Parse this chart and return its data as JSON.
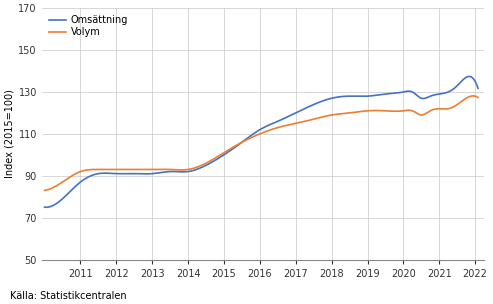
{
  "ylabel": "Index (2015=100)",
  "source": "Källa: Statistikcentralen",
  "legend_labels": [
    "Omsättning",
    "Volym"
  ],
  "line_colors": [
    "#4472c4",
    "#ed7d31"
  ],
  "line_width": 1.2,
  "ylim": [
    50,
    170
  ],
  "yticks": [
    50,
    70,
    90,
    110,
    130,
    150,
    170
  ],
  "xlim_start": 2009.92,
  "xlim_end": 2022.25,
  "xticks": [
    2011,
    2012,
    2013,
    2014,
    2015,
    2016,
    2017,
    2018,
    2019,
    2020,
    2021,
    2022
  ],
  "background_color": "#ffffff",
  "grid_color": "#c8c8c8",
  "omsattning_knots_x": [
    2010.0,
    2010.5,
    2011.0,
    2011.5,
    2012.0,
    2012.5,
    2013.0,
    2013.5,
    2014.0,
    2014.5,
    2015.0,
    2015.5,
    2016.0,
    2016.5,
    2017.0,
    2017.5,
    2018.0,
    2018.5,
    2019.0,
    2019.5,
    2020.0,
    2020.25,
    2020.5,
    2020.75,
    2021.0,
    2021.25,
    2021.5,
    2021.75,
    2022.0
  ],
  "omsattning_knots_y": [
    75,
    79,
    87,
    91,
    91,
    91,
    91,
    92,
    92,
    95,
    100,
    106,
    112,
    116,
    120,
    124,
    127,
    128,
    128,
    129,
    130,
    130,
    127,
    128,
    129,
    130,
    133,
    137,
    135
  ],
  "volym_knots_x": [
    2010.0,
    2010.5,
    2011.0,
    2011.5,
    2012.0,
    2012.5,
    2013.0,
    2013.5,
    2014.0,
    2014.5,
    2015.0,
    2015.5,
    2016.0,
    2016.5,
    2017.0,
    2017.5,
    2018.0,
    2018.5,
    2019.0,
    2019.5,
    2020.0,
    2020.25,
    2020.5,
    2020.75,
    2021.0,
    2021.25,
    2021.5,
    2021.75,
    2022.0
  ],
  "volym_knots_y": [
    83,
    87,
    92,
    93,
    93,
    93,
    93,
    93,
    93,
    96,
    101,
    106,
    110,
    113,
    115,
    117,
    119,
    120,
    121,
    121,
    121,
    121,
    119,
    121,
    122,
    122,
    124,
    127,
    128
  ],
  "n_points": 500,
  "start_year": 2010.0,
  "end_year": 2022.08
}
